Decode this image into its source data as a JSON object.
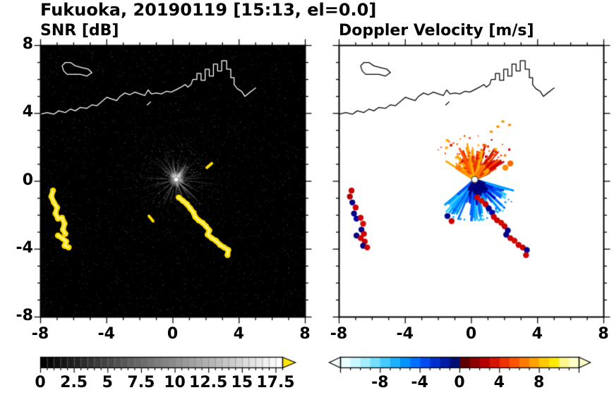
{
  "figure": {
    "title": "Fukuoka, 20190119 [15:13, el=0.0]",
    "background": "#ffffff"
  },
  "chart_data": {
    "type": "heatmap",
    "subtype": "dual-panel Doppler radar PPI scan",
    "radar_center": [
      0.2,
      0.1
    ],
    "axis": {
      "xlim": [
        -8,
        8
      ],
      "ylim": [
        -8,
        8
      ],
      "x_ticks": [
        -8,
        -4,
        0,
        4,
        8
      ],
      "y_ticks": [
        8,
        4,
        0,
        -4,
        -8
      ],
      "minor_tick_step": 1
    },
    "panels": [
      {
        "id": "snr",
        "title": "SNR [dB]",
        "background": "#000000",
        "coast_color": "#ffffff",
        "colorbar": {
          "min": 0,
          "max": 18,
          "segment_step": 0.5,
          "tick_values": [
            0,
            2.5,
            5,
            7.5,
            10,
            12.5,
            15,
            17.5
          ],
          "tick_labels": [
            "0",
            "2.5",
            "5",
            "7.5",
            "10",
            "12.5",
            "15",
            "17.5"
          ],
          "gradient": [
            "#000000",
            "#ffffff"
          ],
          "over_arrow_color": "#ffe800"
        },
        "texture": {
          "noise": {
            "count": 2600,
            "gray": [
              16,
              88
            ]
          },
          "center_noise": {
            "count": 750,
            "radius": 3.6,
            "gray": [
              40,
              150
            ]
          },
          "rays": {
            "count": 150,
            "max_len": 2.9,
            "gray": [
              30,
              145
            ]
          },
          "bright_rays": {
            "count": 21,
            "max_len": 1.9,
            "gray": [
              150,
              215
            ],
            "sectors": [
              [
                95,
                170
              ],
              [
                285,
                335
              ],
              [
                40,
                75
              ]
            ]
          },
          "dark_spokes": [
            168,
            185,
            205,
            228,
            248,
            262,
            300,
            322
          ]
        }
      },
      {
        "id": "doppler",
        "title": "Doppler Velocity [m/s]",
        "background": "#ffffff",
        "coast_color": "#000000",
        "colorbar": {
          "min": -12,
          "max": 12,
          "segment_step": 1,
          "tick_values": [
            -8,
            -4,
            0,
            4,
            8
          ],
          "tick_labels": [
            "-8",
            "-4",
            "0",
            "4",
            "8"
          ],
          "colors": [
            "#eaffff",
            "#c9f6ff",
            "#a3ecff",
            "#74deff",
            "#45caff",
            "#1cb1ff",
            "#0094ff",
            "#0070ff",
            "#004cf2",
            "#0030cc",
            "#001ca6",
            "#000d72",
            "#5e0000",
            "#8c0000",
            "#b40000",
            "#d41404",
            "#ee3300",
            "#ff5500",
            "#ff7b00",
            "#ffa200",
            "#ffc900",
            "#ffe900",
            "#fff78e",
            "#ffffc9"
          ],
          "under_arrow_color": "#f2ffff",
          "over_arrow_color": "#ffffc9"
        },
        "fans": {
          "positive_lobe": {
            "sector_deg": [
              25,
              150
            ],
            "count": 140,
            "r_max": 2.3,
            "inner_palette": [
              "#ff9900",
              "#ff7700",
              "#ff5500",
              "#e83300",
              "#ffaa00"
            ],
            "east_palette": [
              "#e02200",
              "#cc0000",
              "#ff4400",
              "#d01000"
            ],
            "core_count": 55,
            "dot_count": 45
          },
          "negative_lobe": {
            "sector_deg": [
              -140,
              -15
            ],
            "count": 160,
            "r_max": 2.65,
            "near_palette": [
              "#000077",
              "#000099",
              "#1a1aff"
            ],
            "mid_palette": [
              "#0000bb",
              "#0033dd",
              "#0055ff"
            ],
            "outer_palette": [
              "#0066ff",
              "#0099ff",
              "#00aaff",
              "#33ccff"
            ],
            "core_count": 40,
            "fringe_count": 28
          }
        },
        "far_specks": {
          "points": [
            [
              1.6,
              3.2
            ],
            [
              1.9,
              3.5
            ],
            [
              2.3,
              3.3
            ],
            [
              1.2,
              2.9
            ]
          ],
          "color": "#ff8800"
        }
      }
    ],
    "echo_chains": {
      "snr_color": "#ffdf00",
      "snr_core_color": "#fff6a0",
      "snr_value": "> 17.5 dB",
      "chains": [
        {
          "id": "west-band-north",
          "points": [
            [
              -7.25,
              -0.55
            ],
            [
              -7.35,
              -0.9
            ],
            [
              -7.2,
              -1.25
            ],
            [
              -7.0,
              -1.55
            ],
            [
              -7.1,
              -1.9
            ],
            [
              -6.95,
              -2.2
            ],
            [
              -6.7,
              -2.15
            ],
            [
              -6.55,
              -2.5
            ],
            [
              -6.65,
              -2.85
            ],
            [
              -6.5,
              -3.1
            ]
          ],
          "doppler_colors": [
            "#cc0000",
            "#b00000",
            "#000088",
            "#cc0000",
            "#000088",
            "#0000aa",
            "#cc0000",
            "#d01000",
            "#000088",
            "#cc0000"
          ]
        },
        {
          "id": "west-band-south",
          "points": [
            [
              -6.95,
              -3.2
            ],
            [
              -6.7,
              -3.35
            ],
            [
              -6.45,
              -3.55
            ],
            [
              -6.55,
              -3.8
            ],
            [
              -6.3,
              -3.9
            ]
          ],
          "doppler_colors": [
            "#000088",
            "#cc0000",
            "#cc0000",
            "#000088",
            "#cc0000"
          ]
        },
        {
          "id": "southeast-band",
          "points": [
            [
              0.35,
              -0.95
            ],
            [
              0.6,
              -1.15
            ],
            [
              0.85,
              -1.35
            ],
            [
              1.05,
              -1.6
            ],
            [
              1.25,
              -1.85
            ],
            [
              1.35,
              -2.1
            ],
            [
              1.55,
              -2.3
            ],
            [
              1.8,
              -2.45
            ],
            [
              2.0,
              -2.65
            ],
            [
              2.2,
              -2.9
            ],
            [
              2.1,
              -3.15
            ],
            [
              2.35,
              -3.35
            ],
            [
              2.6,
              -3.5
            ],
            [
              2.85,
              -3.75
            ],
            [
              3.1,
              -3.9
            ],
            [
              3.35,
              -4.05
            ],
            [
              3.3,
              -4.35
            ]
          ],
          "doppler_colors": [
            "#cc0000",
            "#d01000",
            "#cc0000",
            "#000088",
            "#0000aa",
            "#cc0000",
            "#cc0000",
            "#d01000",
            "#cc0000",
            "#000088",
            "#000088",
            "#cc0000",
            "#d01000",
            "#cc0000",
            "#cc0000",
            "#000088",
            "#cc0000"
          ]
        },
        {
          "id": "small-echo-northeast",
          "points": [
            [
              2.05,
              0.8
            ],
            [
              2.35,
              1.05
            ]
          ],
          "doppler_colors": [
            "#ff8800",
            "#ff6600"
          ]
        },
        {
          "id": "small-echo-southwest",
          "points": [
            [
              -1.45,
              -2.05
            ],
            [
              -1.2,
              -2.35
            ]
          ],
          "doppler_colors": [
            "#000088",
            "#cc0000"
          ]
        }
      ]
    },
    "coastline": {
      "island": [
        [
          -6.6,
          6.5
        ],
        [
          -6.7,
          6.8
        ],
        [
          -6.5,
          7.0
        ],
        [
          -6.2,
          7.0
        ],
        [
          -5.9,
          6.8
        ],
        [
          -5.5,
          6.7
        ],
        [
          -5.1,
          6.6
        ],
        [
          -4.9,
          6.4
        ],
        [
          -5.2,
          6.2
        ],
        [
          -5.6,
          6.3
        ],
        [
          -6.0,
          6.3
        ],
        [
          -6.4,
          6.3
        ],
        [
          -6.6,
          6.5
        ]
      ],
      "mainland": [
        [
          -8.0,
          3.95
        ],
        [
          -7.6,
          4.05
        ],
        [
          -7.2,
          3.95
        ],
        [
          -6.9,
          4.15
        ],
        [
          -6.5,
          4.05
        ],
        [
          -6.2,
          4.25
        ],
        [
          -5.9,
          4.15
        ],
        [
          -5.6,
          4.35
        ],
        [
          -5.2,
          4.3
        ],
        [
          -4.9,
          4.5
        ],
        [
          -4.6,
          4.45
        ],
        [
          -4.3,
          4.7
        ],
        [
          -4.0,
          4.95
        ],
        [
          -3.7,
          4.85
        ],
        [
          -3.4,
          4.75
        ],
        [
          -3.2,
          5.0
        ],
        [
          -2.9,
          5.2
        ],
        [
          -2.6,
          5.1
        ],
        [
          -2.3,
          5.25
        ],
        [
          -2.0,
          5.15
        ],
        [
          -1.7,
          5.05
        ],
        [
          -1.5,
          5.38
        ],
        [
          -1.3,
          5.15
        ],
        [
          -1.0,
          5.2
        ],
        [
          -0.7,
          5.15
        ],
        [
          -0.4,
          5.3
        ],
        [
          -0.1,
          5.25
        ],
        [
          0.2,
          5.4
        ],
        [
          0.5,
          5.55
        ],
        [
          0.75,
          5.7
        ],
        [
          0.9,
          5.55
        ],
        [
          1.1,
          5.7
        ],
        [
          1.2,
          6.0
        ],
        [
          1.45,
          6.0
        ],
        [
          1.45,
          6.35
        ],
        [
          1.7,
          6.35
        ],
        [
          1.7,
          5.95
        ],
        [
          1.95,
          5.95
        ],
        [
          1.95,
          6.6
        ],
        [
          2.2,
          6.6
        ],
        [
          2.2,
          6.2
        ],
        [
          2.45,
          6.2
        ],
        [
          2.45,
          6.9
        ],
        [
          2.7,
          6.9
        ],
        [
          2.7,
          6.5
        ],
        [
          2.95,
          6.5
        ],
        [
          2.95,
          7.1
        ],
        [
          3.25,
          7.1
        ],
        [
          3.25,
          6.6
        ],
        [
          3.5,
          6.6
        ],
        [
          3.5,
          6.1
        ],
        [
          3.7,
          6.1
        ],
        [
          3.7,
          5.7
        ],
        [
          3.9,
          5.45
        ],
        [
          4.15,
          5.3
        ],
        [
          4.35,
          5.0
        ],
        [
          4.6,
          5.2
        ],
        [
          4.8,
          5.35
        ],
        [
          5.0,
          5.5
        ]
      ],
      "marks": [
        [
          [
            -1.55,
            4.5
          ],
          [
            -1.35,
            4.68
          ]
        ]
      ]
    }
  }
}
